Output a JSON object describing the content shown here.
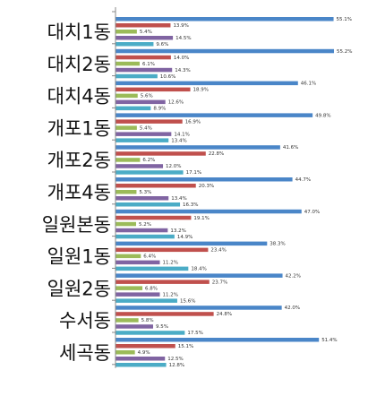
{
  "chart_data": {
    "type": "bar",
    "orientation": "horizontal",
    "title": "",
    "xlabel": "",
    "ylabel": "",
    "xlim": [
      0,
      60
    ],
    "grid": false,
    "legend": "none",
    "categories": [
      "대치1동",
      "대치2동",
      "대치4동",
      "개포1동",
      "개포2동",
      "개포4동",
      "일원본동",
      "일원1동",
      "일원2동",
      "수서동",
      "세곡동"
    ],
    "series": [
      {
        "color": "#4a86c8",
        "values": [
          55.1,
          55.2,
          46.1,
          49.8,
          41.6,
          44.7,
          47.0,
          38.3,
          42.2,
          42.0,
          51.4
        ],
        "labels": [
          "55.1%",
          "55.2%",
          "46.1%",
          "49.8%",
          "41.6%",
          "44.7%",
          "47.0%",
          "38.3%",
          "42.2%",
          "42.0%",
          "51.4%"
        ]
      },
      {
        "color": "#c0504d",
        "values": [
          13.9,
          14.0,
          18.9,
          16.9,
          22.8,
          20.3,
          19.1,
          23.4,
          23.7,
          24.8,
          15.1
        ],
        "labels": [
          "13.9%",
          "14.0%",
          "18.9%",
          "16.9%",
          "22.8%",
          "20.3%",
          "19.1%",
          "23.4%",
          "23.7%",
          "24.8%",
          "15.1%"
        ]
      },
      {
        "color": "#9bbb59",
        "values": [
          5.4,
          6.1,
          5.6,
          5.4,
          6.2,
          5.3,
          5.2,
          6.4,
          6.8,
          5.8,
          4.9
        ],
        "labels": [
          "5.4%",
          "6.1%",
          "5.6%",
          "5.4%",
          "6.2%",
          "5.3%",
          "5.2%",
          "6.4%",
          "6.8%",
          "5.8%",
          "4.9%"
        ]
      },
      {
        "color": "#8064a2",
        "values": [
          14.5,
          14.3,
          12.6,
          14.1,
          12.0,
          13.4,
          13.2,
          11.2,
          11.2,
          9.5,
          12.5
        ],
        "labels": [
          "14.5%",
          "14.3%",
          "12.6%",
          "14.1%",
          "12.0%",
          "13.4%",
          "13.2%",
          "11.2%",
          "11.2%",
          "9.5%",
          "12.5%"
        ]
      },
      {
        "color": "#4bacc6",
        "values": [
          9.6,
          10.6,
          8.9,
          13.4,
          17.1,
          16.3,
          14.9,
          18.4,
          15.6,
          17.5,
          12.8
        ],
        "labels": [
          "9.6%",
          "10.6%",
          "8.9%",
          "13.4%",
          "17.1%",
          "16.3%",
          "14.9%",
          "18.4%",
          "15.6%",
          "17.5%",
          "12.8%"
        ]
      }
    ]
  }
}
